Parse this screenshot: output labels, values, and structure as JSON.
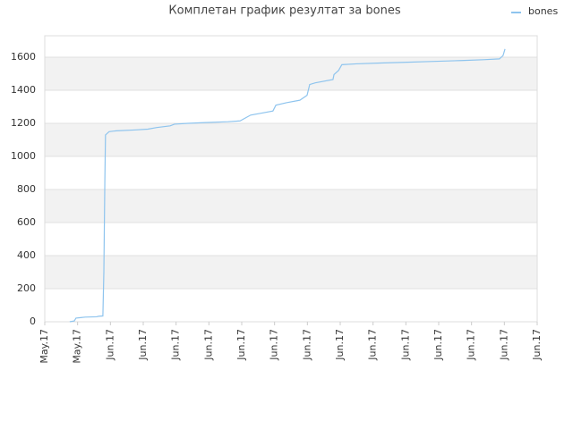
{
  "chart_data": {
    "type": "line",
    "title": "Комплетан график резултат за bones",
    "x": [
      0.76,
      0.9,
      0.95,
      1.09,
      1.23,
      1.58,
      1.64,
      1.77,
      1.8,
      1.83,
      1.85,
      1.96,
      2.18,
      2.73,
      3.14,
      3.41,
      3.82,
      3.95,
      4.36,
      4.9,
      5.59,
      5.95,
      6.27,
      6.55,
      6.95,
      7.04,
      7.36,
      7.77,
      7.99,
      8.07,
      8.24,
      8.78,
      8.81,
      8.95,
      9.05,
      9.49,
      10.23,
      11.05,
      11.86,
      12.68,
      13.36,
      13.85,
      13.96,
      14.02
    ],
    "series": [
      {
        "name": "bones",
        "color": "#8ec4ee",
        "values": [
          0,
          5,
          22,
          25,
          28,
          30,
          33,
          35,
          300,
          850,
          1130,
          1150,
          1155,
          1160,
          1165,
          1175,
          1185,
          1195,
          1200,
          1205,
          1210,
          1215,
          1250,
          1260,
          1275,
          1310,
          1325,
          1340,
          1370,
          1435,
          1445,
          1465,
          1495,
          1520,
          1555,
          1560,
          1565,
          1570,
          1575,
          1580,
          1585,
          1590,
          1610,
          1650
        ]
      }
    ],
    "xlim": [
      0,
      15
    ],
    "xticks": [
      {
        "value": 0,
        "label": "May.17"
      },
      {
        "value": 1,
        "label": "May.17"
      },
      {
        "value": 2,
        "label": "Jun.17"
      },
      {
        "value": 3,
        "label": "Jun.17"
      },
      {
        "value": 4,
        "label": "Jun.17"
      },
      {
        "value": 5,
        "label": "Jun.17"
      },
      {
        "value": 6,
        "label": "Jun.17"
      },
      {
        "value": 7,
        "label": "Jun.17"
      },
      {
        "value": 8,
        "label": "Jun.17"
      },
      {
        "value": 9,
        "label": "Jun.17"
      },
      {
        "value": 10,
        "label": "Jun.17"
      },
      {
        "value": 11,
        "label": "Jun.17"
      },
      {
        "value": 12,
        "label": "Jun.17"
      },
      {
        "value": 13,
        "label": "Jun.17"
      },
      {
        "value": 14,
        "label": "Jun.17"
      },
      {
        "value": 15,
        "label": "Jun.17"
      }
    ],
    "ylim": [
      0,
      1730
    ],
    "yticks": [
      0,
      200,
      400,
      600,
      800,
      1000,
      1200,
      1400,
      1600
    ],
    "grid": true,
    "legend": "top-right"
  }
}
